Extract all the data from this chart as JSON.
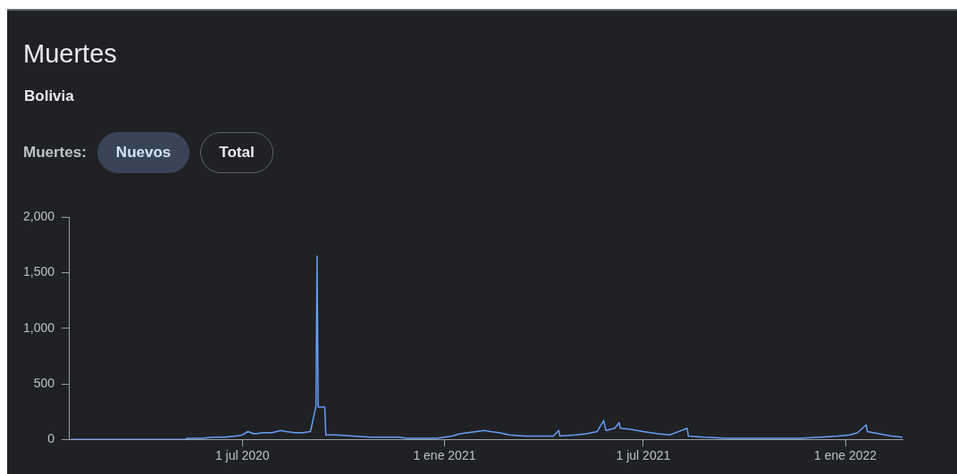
{
  "chart_data": {
    "type": "line",
    "title": "Muertes",
    "subtitle": "Bolivia",
    "annotations": [
      "Muertes:",
      "Nuevos",
      "Total"
    ],
    "x": [
      "2020-01-27",
      "2020-05-10",
      "2020-05-12",
      "2020-05-25",
      "2020-06-05",
      "2020-06-15",
      "2020-06-25",
      "2020-07-01",
      "2020-07-06",
      "2020-07-12",
      "2020-07-20",
      "2020-07-28",
      "2020-08-05",
      "2020-08-10",
      "2020-08-18",
      "2020-08-25",
      "2020-09-01",
      "2020-09-06",
      "2020-09-07",
      "2020-09-08",
      "2020-09-14",
      "2020-09-15",
      "2020-09-25",
      "2020-10-10",
      "2020-10-25",
      "2020-11-10",
      "2020-11-20",
      "2020-11-28",
      "2020-12-20",
      "2020-12-25",
      "2021-01-01",
      "2021-01-08",
      "2021-01-15",
      "2021-01-22",
      "2021-01-30",
      "2021-02-06",
      "2021-02-12",
      "2021-02-20",
      "2021-03-01",
      "2021-03-15",
      "2021-03-30",
      "2021-04-10",
      "2021-04-15",
      "2021-04-16",
      "2021-04-30",
      "2021-05-10",
      "2021-05-20",
      "2021-05-26",
      "2021-05-28",
      "2021-06-05",
      "2021-06-09",
      "2021-06-10",
      "2021-06-20",
      "2021-07-01",
      "2021-07-15",
      "2021-07-25",
      "2021-08-10",
      "2021-08-11",
      "2021-08-25",
      "2021-09-15",
      "2021-10-01",
      "2021-10-15",
      "2021-11-01",
      "2021-11-20",
      "2021-12-10",
      "2021-12-25",
      "2022-01-05",
      "2022-01-12",
      "2022-01-20",
      "2022-01-21",
      "2022-02-01",
      "2022-02-12",
      "2022-02-22"
    ],
    "series": [
      {
        "color": "#669df6",
        "values": [
          0,
          0,
          10,
          10,
          20,
          20,
          30,
          40,
          70,
          50,
          60,
          60,
          80,
          70,
          60,
          60,
          70,
          300,
          1650,
          290,
          290,
          40,
          40,
          30,
          20,
          20,
          20,
          10,
          10,
          10,
          20,
          30,
          50,
          60,
          70,
          80,
          70,
          60,
          40,
          30,
          30,
          30,
          80,
          30,
          40,
          50,
          70,
          170,
          80,
          100,
          150,
          100,
          90,
          70,
          50,
          40,
          100,
          30,
          20,
          10,
          10,
          10,
          10,
          10,
          20,
          30,
          40,
          60,
          130,
          70,
          50,
          30,
          20
        ]
      }
    ],
    "xlim": [
      "2020-01-25",
      "2022-02-22"
    ],
    "xticks": [
      {
        "value": "2020-07-01",
        "label": "1 jul 2020"
      },
      {
        "value": "2021-01-01",
        "label": "1 ene 2021"
      },
      {
        "value": "2021-07-01",
        "label": "1 jul 2021"
      },
      {
        "value": "2022-01-01",
        "label": "1 ene 2022"
      }
    ],
    "ylim": [
      0,
      2000
    ],
    "yticks": [
      0,
      500,
      {
        "value": 1000,
        "label": "1,000"
      },
      {
        "value": 1500,
        "label": "1,500"
      },
      {
        "value": 2000,
        "label": "2,000"
      }
    ],
    "grid": false,
    "legend": false,
    "marker": "none",
    "line_style": "solid"
  }
}
